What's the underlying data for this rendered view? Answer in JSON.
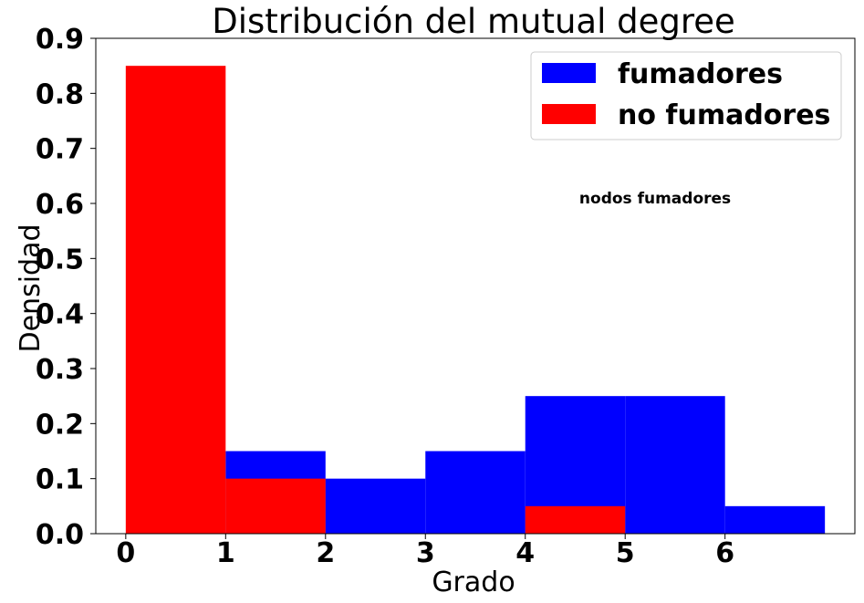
{
  "chart_data": {
    "type": "bar",
    "title": "Distribución del mutual degree",
    "xlabel": "Grado",
    "ylabel": "Densidad",
    "xlim": [
      -0.3,
      7.3
    ],
    "ylim": [
      0,
      0.9
    ],
    "xticks": [
      "0",
      "1",
      "2",
      "3",
      "4",
      "5",
      "6"
    ],
    "yticks": [
      "0.0",
      "0.1",
      "0.2",
      "0.3",
      "0.4",
      "0.5",
      "0.6",
      "0.7",
      "0.8",
      "0.9"
    ],
    "bin_edges": [
      0,
      1,
      2,
      3,
      4,
      5,
      6,
      7
    ],
    "series": [
      {
        "name": "fumadores",
        "color": "#0000ff",
        "values": [
          0.0,
          0.15,
          0.1,
          0.15,
          0.25,
          0.25,
          0.05
        ]
      },
      {
        "name": "no fumadores",
        "color": "#ff0000",
        "values": [
          0.85,
          0.1,
          0.0,
          0.0,
          0.05,
          0.0,
          0.0
        ]
      }
    ],
    "annotation": {
      "text": "nodos fumadores",
      "x": 5.3,
      "y": 0.6
    },
    "legend_position": "top-right",
    "grid": false
  }
}
